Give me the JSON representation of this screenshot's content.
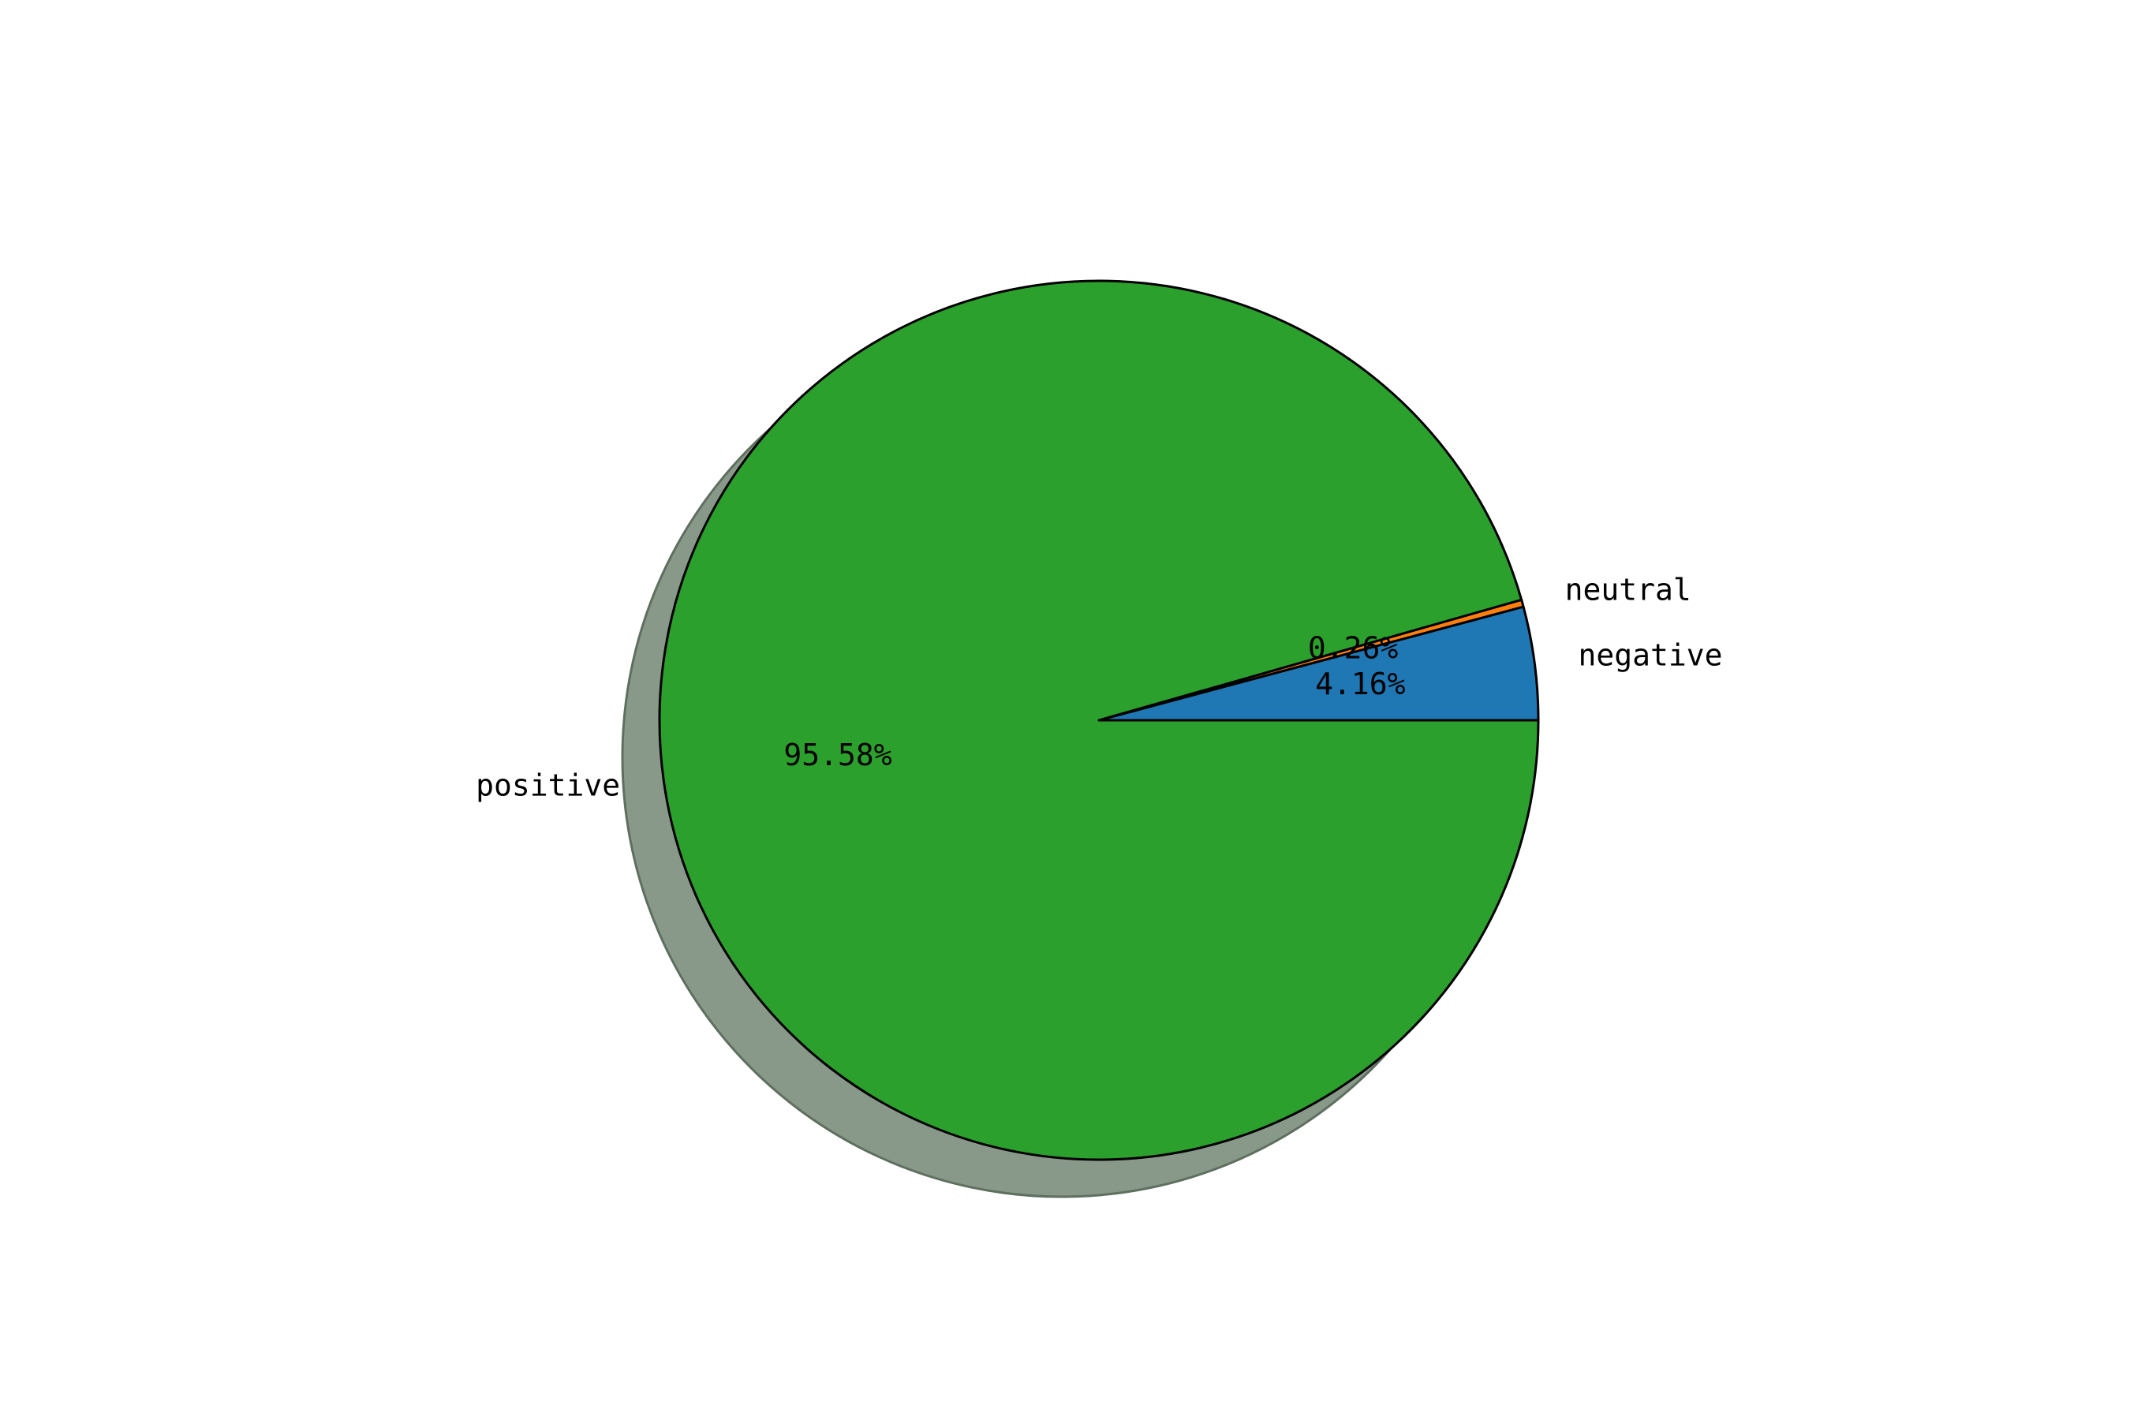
{
  "chart_data": {
    "type": "pie",
    "title": "",
    "start_angle_deg": 0,
    "direction": "counterclockwise",
    "shadow": true,
    "edge_color": "#000000",
    "slices": [
      {
        "label": "negative",
        "value": 4.16,
        "pct_text": "4.16%",
        "color": "#1f77b4"
      },
      {
        "label": "neutral",
        "value": 0.26,
        "pct_text": "0.26%",
        "color": "#ff7f0e"
      },
      {
        "label": "positive",
        "value": 95.58,
        "pct_text": "95.58%",
        "color": "#2ca02c"
      }
    ],
    "shadow_color": "#88998a"
  }
}
